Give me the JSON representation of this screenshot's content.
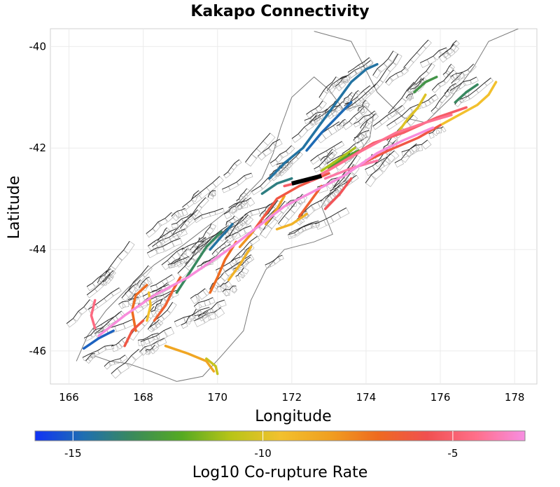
{
  "title": "Kakapo Connectivity",
  "x_axis": {
    "label": "Longitude",
    "ticks": [
      "166",
      "168",
      "170",
      "172",
      "174",
      "176",
      "178"
    ],
    "range": [
      165.5,
      178.6
    ]
  },
  "y_axis": {
    "label": "Latitude",
    "ticks": [
      "-40",
      "-42",
      "-44",
      "-46"
    ],
    "range": [
      -46.65,
      -39.65
    ]
  },
  "colorbar": {
    "label": "Log10 Co-rupture Rate",
    "ticks": [
      "-15",
      "-10",
      "-5"
    ],
    "range": [
      -16,
      -3.1
    ],
    "colors": [
      "#1033f5",
      "#1f6fb0",
      "#3a8a5a",
      "#55aa22",
      "#b8c418",
      "#f2c12e",
      "#f0a020",
      "#ee6a20",
      "#f05050",
      "#ff6f8a",
      "#f78ee2"
    ]
  },
  "map": {
    "fault_trace_color": "#2b2b2b",
    "coastline_color": "#7a7a7a",
    "dip_box_color": "#aaaaaa",
    "source_fault_color": "#000000",
    "grid": true,
    "source_fault": {
      "from": [
        172.0,
        -42.7
      ],
      "to": [
        172.8,
        -42.55
      ]
    },
    "ruptures": [
      {
        "value": -3.2,
        "points": [
          [
            166.8,
            -45.7
          ],
          [
            167.5,
            -45.3
          ],
          [
            168.3,
            -44.9
          ],
          [
            169.2,
            -44.55
          ],
          [
            170.2,
            -44.05
          ],
          [
            171.0,
            -43.6
          ],
          [
            171.8,
            -43.15
          ],
          [
            172.6,
            -42.85
          ],
          [
            173.4,
            -42.55
          ],
          [
            174.3,
            -42.1
          ],
          [
            175.0,
            -41.85
          ],
          [
            175.8,
            -41.6
          ]
        ]
      },
      {
        "value": -4.3,
        "points": [
          [
            172.5,
            -42.65
          ],
          [
            173.2,
            -42.35
          ],
          [
            173.9,
            -42.05
          ],
          [
            174.8,
            -41.7
          ],
          [
            175.6,
            -41.5
          ],
          [
            176.3,
            -41.35
          ]
        ]
      },
      {
        "value": -5.2,
        "points": [
          [
            171.8,
            -42.75
          ],
          [
            172.6,
            -42.6
          ],
          [
            173.3,
            -42.3
          ],
          [
            174.2,
            -41.9
          ],
          [
            175.0,
            -41.7
          ],
          [
            175.9,
            -41.4
          ],
          [
            176.7,
            -41.2
          ]
        ]
      },
      {
        "value": -6.0,
        "points": [
          [
            171.0,
            -43.6
          ],
          [
            171.6,
            -43.0
          ],
          [
            172.2,
            -42.75
          ],
          [
            173.0,
            -42.5
          ]
        ]
      },
      {
        "value": -4.6,
        "points": [
          [
            166.7,
            -45.55
          ],
          [
            166.6,
            -45.3
          ],
          [
            166.7,
            -45.0
          ]
        ]
      },
      {
        "value": -6.5,
        "points": [
          [
            168.3,
            -45.4
          ],
          [
            168.6,
            -45.1
          ],
          [
            168.8,
            -44.8
          ],
          [
            169.0,
            -44.55
          ]
        ]
      },
      {
        "value": -7.0,
        "points": [
          [
            167.8,
            -45.6
          ],
          [
            167.7,
            -45.2
          ],
          [
            167.8,
            -44.9
          ],
          [
            168.1,
            -44.7
          ]
        ]
      },
      {
        "value": -6.0,
        "points": [
          [
            167.5,
            -45.9
          ],
          [
            167.7,
            -45.6
          ],
          [
            168.0,
            -45.4
          ]
        ]
      },
      {
        "value": -8.5,
        "points": [
          [
            168.6,
            -45.9
          ],
          [
            169.2,
            -46.05
          ],
          [
            169.7,
            -46.2
          ],
          [
            169.9,
            -46.4
          ]
        ]
      },
      {
        "value": -10.5,
        "points": [
          [
            169.7,
            -46.15
          ],
          [
            169.95,
            -46.3
          ],
          [
            170.0,
            -46.45
          ]
        ]
      },
      {
        "value": -9.5,
        "points": [
          [
            168.1,
            -45.4
          ],
          [
            168.2,
            -45.1
          ],
          [
            168.15,
            -44.85
          ]
        ]
      },
      {
        "value": -7.0,
        "points": [
          [
            169.8,
            -44.85
          ],
          [
            170.0,
            -44.55
          ],
          [
            170.2,
            -44.2
          ],
          [
            170.5,
            -43.85
          ]
        ]
      },
      {
        "value": -8.0,
        "points": [
          [
            170.6,
            -43.95
          ],
          [
            170.9,
            -43.7
          ],
          [
            171.2,
            -43.4
          ],
          [
            171.5,
            -43.1
          ]
        ]
      },
      {
        "value": -9.0,
        "points": [
          [
            170.3,
            -44.6
          ],
          [
            170.6,
            -44.3
          ],
          [
            170.9,
            -43.95
          ]
        ]
      },
      {
        "value": -8.5,
        "points": [
          [
            171.3,
            -43.5
          ],
          [
            171.6,
            -43.2
          ],
          [
            171.8,
            -42.95
          ]
        ]
      },
      {
        "value": -6.5,
        "points": [
          [
            172.2,
            -43.35
          ],
          [
            172.5,
            -43.05
          ],
          [
            172.8,
            -42.75
          ]
        ]
      },
      {
        "value": -9.0,
        "points": [
          [
            171.6,
            -43.6
          ],
          [
            172.0,
            -43.5
          ],
          [
            172.4,
            -43.3
          ]
        ]
      },
      {
        "value": -5.5,
        "points": [
          [
            172.9,
            -43.2
          ],
          [
            173.3,
            -42.9
          ],
          [
            173.6,
            -42.6
          ]
        ]
      },
      {
        "value": -13.5,
        "points": [
          [
            168.9,
            -44.85
          ],
          [
            169.3,
            -44.4
          ],
          [
            169.7,
            -43.95
          ],
          [
            170.1,
            -43.65
          ]
        ]
      },
      {
        "value": -14.5,
        "points": [
          [
            169.8,
            -44.0
          ],
          [
            170.1,
            -43.75
          ],
          [
            170.4,
            -43.5
          ]
        ]
      },
      {
        "value": -15.0,
        "points": [
          [
            166.4,
            -45.95
          ],
          [
            166.8,
            -45.75
          ],
          [
            167.2,
            -45.6
          ]
        ]
      },
      {
        "value": -14.0,
        "points": [
          [
            171.2,
            -42.9
          ],
          [
            171.6,
            -42.7
          ],
          [
            172.0,
            -42.6
          ]
        ]
      },
      {
        "value": -14.5,
        "points": [
          [
            171.4,
            -42.6
          ],
          [
            171.8,
            -42.3
          ],
          [
            172.3,
            -42.0
          ],
          [
            172.7,
            -41.6
          ],
          [
            173.0,
            -41.3
          ],
          [
            173.3,
            -41.0
          ],
          [
            173.6,
            -40.7
          ],
          [
            174.0,
            -40.45
          ],
          [
            174.3,
            -40.35
          ]
        ]
      },
      {
        "value": -14.8,
        "points": [
          [
            172.4,
            -42.05
          ],
          [
            172.8,
            -41.7
          ],
          [
            173.2,
            -41.4
          ],
          [
            173.6,
            -41.1
          ]
        ]
      },
      {
        "value": -11.0,
        "points": [
          [
            172.8,
            -42.45
          ],
          [
            173.3,
            -42.2
          ],
          [
            173.7,
            -42.0
          ]
        ]
      },
      {
        "value": -12.5,
        "points": [
          [
            173.0,
            -42.4
          ],
          [
            173.4,
            -42.2
          ],
          [
            173.8,
            -42.05
          ]
        ]
      },
      {
        "value": -10.0,
        "points": [
          [
            174.8,
            -41.75
          ],
          [
            175.1,
            -41.45
          ],
          [
            175.4,
            -41.2
          ],
          [
            175.6,
            -40.95
          ]
        ]
      },
      {
        "value": -9.5,
        "points": [
          [
            176.0,
            -41.55
          ],
          [
            176.5,
            -41.35
          ],
          [
            177.0,
            -41.15
          ],
          [
            177.3,
            -40.95
          ],
          [
            177.5,
            -40.7
          ]
        ]
      },
      {
        "value": -13.5,
        "points": [
          [
            176.4,
            -41.1
          ],
          [
            176.7,
            -40.9
          ],
          [
            177.0,
            -40.75
          ]
        ]
      },
      {
        "value": -13.0,
        "points": [
          [
            175.3,
            -40.9
          ],
          [
            175.6,
            -40.7
          ],
          [
            175.9,
            -40.6
          ]
        ]
      },
      {
        "value": -6.0,
        "points": [
          [
            173.9,
            -42.3
          ],
          [
            174.6,
            -42.05
          ],
          [
            175.4,
            -41.8
          ],
          [
            176.0,
            -41.55
          ]
        ]
      },
      {
        "value": -4.0,
        "points": [
          [
            172.9,
            -42.6
          ],
          [
            173.6,
            -42.4
          ],
          [
            174.3,
            -42.25
          ]
        ]
      }
    ]
  }
}
